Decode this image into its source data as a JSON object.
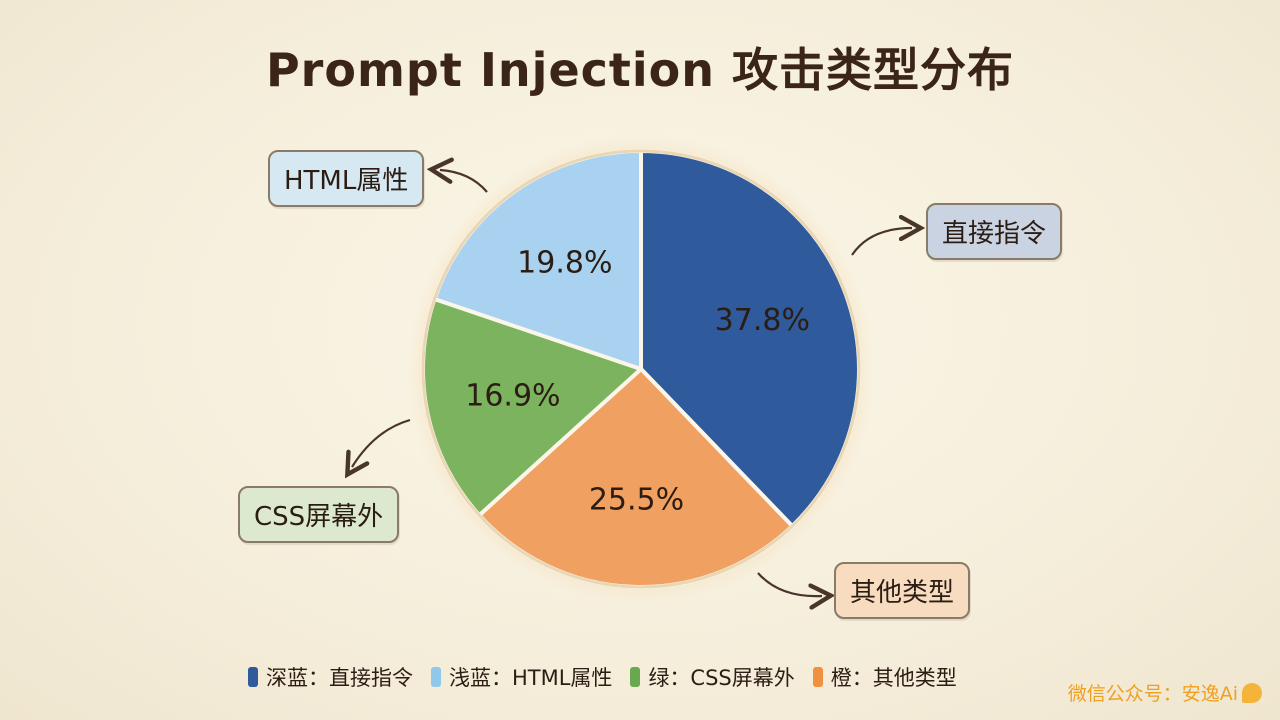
{
  "title": "Prompt Injection 攻击类型分布",
  "chart_data": {
    "type": "pie",
    "slices": [
      {
        "label": "直接指令",
        "value": 37.8,
        "display": "37.8%",
        "color": "#2f5a9c"
      },
      {
        "label": "其他类型",
        "value": 25.5,
        "display": "25.5%",
        "color": "#f0a060"
      },
      {
        "label": "CSS屏幕外",
        "value": 16.9,
        "display": "16.9%",
        "color": "#7cb35e"
      },
      {
        "label": "HTML属性",
        "value": 19.8,
        "display": "19.8%",
        "color": "#a8d2ef"
      }
    ],
    "start_angle_deg": 0,
    "direction": "clockwise"
  },
  "callouts": [
    {
      "text": "直接指令",
      "bg": "#c9d3e2"
    },
    {
      "text": "其他类型",
      "bg": "#f7dcc0"
    },
    {
      "text": "CSS屏幕外",
      "bg": "#dde9cf"
    },
    {
      "text": "HTML属性",
      "bg": "#d6e9f3"
    }
  ],
  "legend": [
    {
      "text": "深蓝：直接指令",
      "color": "#2f5a9c"
    },
    {
      "text": "浅蓝：HTML属性",
      "color": "#8fc8ea"
    },
    {
      "text": "绿：CSS屏幕外",
      "color": "#6aa84f"
    },
    {
      "text": "橙：其他类型",
      "color": "#f0913f"
    }
  ],
  "watermark": "微信公众号：安逸Ai"
}
